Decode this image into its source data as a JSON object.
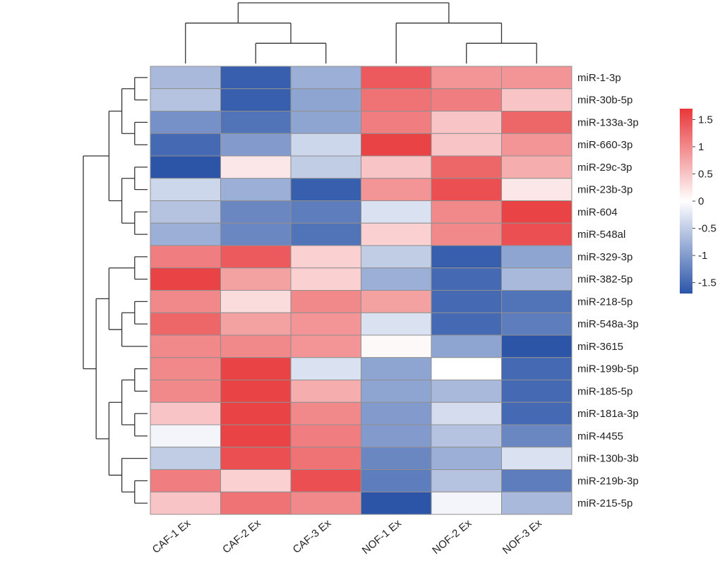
{
  "chart_data": {
    "type": "heatmap",
    "title": "",
    "columns": [
      "CAF-1 Ex",
      "CAF-2 Ex",
      "CAF-3 Ex",
      "NOF-1 Ex",
      "NOF-2 Ex",
      "NOF-3 Ex"
    ],
    "rows": [
      "miR-1-3p",
      "miR-30b-5p",
      "miR-133a-3p",
      "miR-660-3p",
      "miR-29c-3p",
      "miR-23b-3p",
      "miR-604",
      "miR-548al",
      "miR-329-3p",
      "miR-382-5p",
      "miR-218-5p",
      "miR-548a-3p",
      "miR-3615",
      "miR-199b-5p",
      "miR-185-5p",
      "miR-181a-3p",
      "miR-4455",
      "miR-130b-3b",
      "miR-219b-3p",
      "miR-215-5p"
    ],
    "values": [
      [
        -0.7,
        -1.6,
        -0.8,
        1.4,
        0.9,
        0.9
      ],
      [
        -0.6,
        -1.6,
        -0.9,
        1.2,
        1.1,
        0.5
      ],
      [
        -1.1,
        -1.4,
        -0.9,
        1.1,
        0.5,
        1.3
      ],
      [
        -1.5,
        -1.0,
        -0.4,
        1.6,
        0.5,
        0.9
      ],
      [
        -1.8,
        0.2,
        -0.5,
        0.5,
        1.3,
        0.7
      ],
      [
        -0.4,
        -0.8,
        -1.6,
        0.9,
        1.5,
        0.2
      ],
      [
        -0.6,
        -1.2,
        -1.3,
        -0.3,
        1.0,
        1.6
      ],
      [
        -0.8,
        -1.2,
        -1.4,
        0.4,
        1.0,
        1.5
      ],
      [
        1.1,
        1.4,
        0.4,
        -0.5,
        -1.6,
        -0.9
      ],
      [
        1.6,
        0.8,
        0.4,
        -0.8,
        -1.5,
        -0.7
      ],
      [
        1.0,
        0.3,
        1.0,
        0.8,
        -1.5,
        -1.4
      ],
      [
        1.3,
        0.8,
        0.9,
        -0.3,
        -1.5,
        -1.3
      ],
      [
        1.0,
        1.0,
        0.9,
        0.05,
        -0.9,
        -1.7
      ],
      [
        1.0,
        1.6,
        -0.3,
        -0.9,
        0.0,
        -1.5
      ],
      [
        1.0,
        1.6,
        0.7,
        -0.9,
        -0.7,
        -1.5
      ],
      [
        0.5,
        1.6,
        1.0,
        -1.0,
        -0.35,
        -1.5
      ],
      [
        -0.1,
        1.6,
        1.1,
        -1.0,
        -0.6,
        -1.2
      ],
      [
        -0.5,
        1.5,
        1.2,
        -1.2,
        -0.8,
        -0.3
      ],
      [
        1.1,
        0.4,
        1.5,
        -1.3,
        -0.6,
        -1.3
      ],
      [
        0.5,
        1.2,
        1.0,
        -1.7,
        -0.1,
        -0.7
      ]
    ],
    "zlim": [
      -1.7,
      1.7
    ],
    "colorbar": {
      "ticks": [
        1.5,
        1,
        0.5,
        0,
        -0.5,
        -1,
        -1.5
      ],
      "tick_labels": [
        "1.5",
        "1",
        "0.5",
        "0",
        "-0.5",
        "-1",
        "-1.5"
      ],
      "colors": {
        "low": "#2c55a8",
        "mid": "#ffffff",
        "high": "#e8373a"
      }
    },
    "column_dendrogram": "((CAF-1 Ex,(CAF-2 Ex,CAF-3 Ex)),(NOF-1 Ex,(NOF-2 Ex,NOF-3 Ex)))",
    "row_dendrogram": "((((miR-1-3p,miR-30b-5p),(miR-133a-3p,miR-660-3p)),((miR-29c-3p,miR-23b-3p),(miR-604,miR-548al))),(((miR-329-3p,miR-382-5p),((miR-218-5p,miR-548a-3p),miR-3615)),(((miR-199b-5p,miR-185-5p),(miR-181a-3p,miR-4455)),(miR-130b-3b,(miR-219b-3p,miR-215-5p)))))"
  }
}
